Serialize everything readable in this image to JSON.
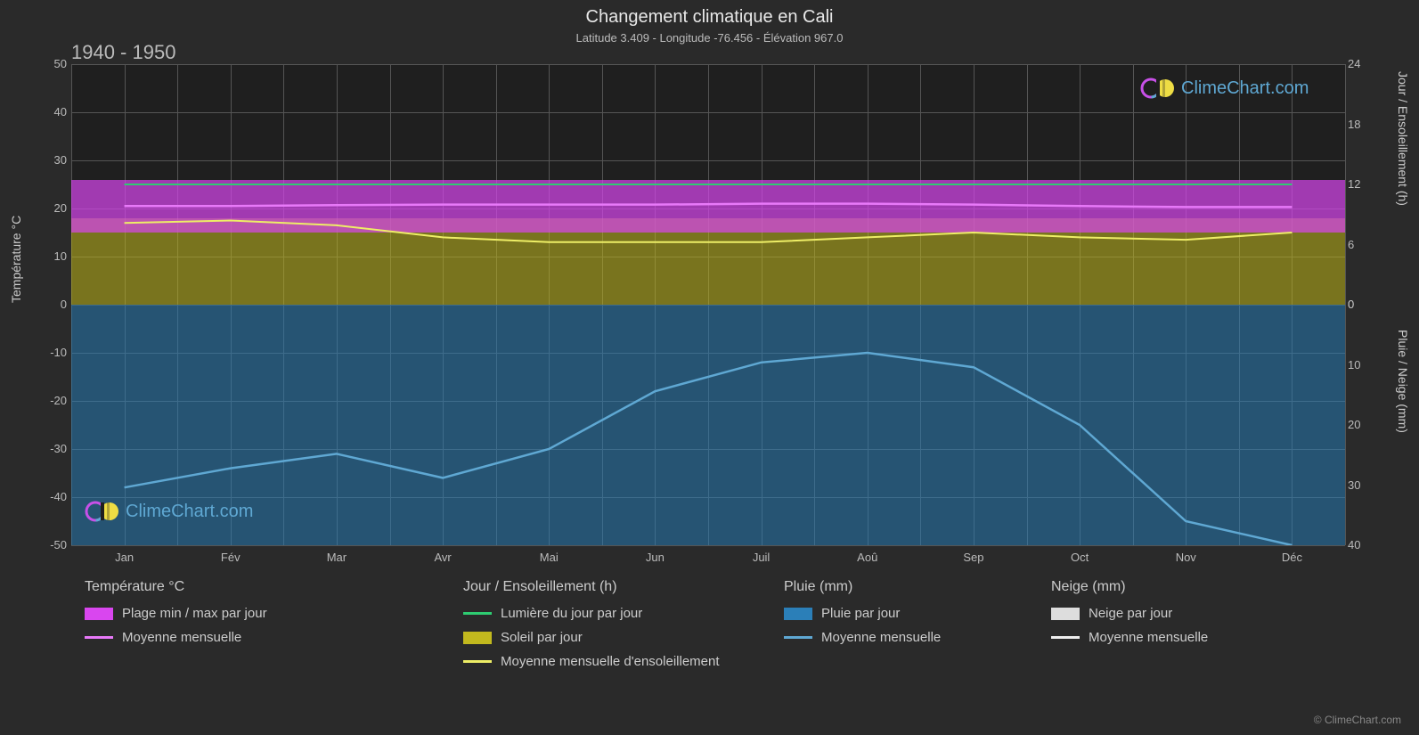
{
  "title": "Changement climatique en Cali",
  "subtitle": "Latitude 3.409 - Longitude -76.456 - Élévation 967.0",
  "period_label": "1940 - 1950",
  "axes": {
    "left_label": "Température °C",
    "right_label_1": "Jour / Ensoleillement (h)",
    "right_label_2": "Pluie / Neige (mm)",
    "left_ticks": [
      50,
      40,
      30,
      20,
      10,
      0,
      -10,
      -20,
      -30,
      -40,
      -50
    ],
    "right_ticks_top": [
      24,
      18,
      12,
      6,
      0
    ],
    "right_ticks_bottom": [
      0,
      10,
      20,
      30,
      40
    ],
    "x_ticks": [
      "Jan",
      "Fév",
      "Mar",
      "Avr",
      "Mai",
      "Jun",
      "Juil",
      "Aoû",
      "Sep",
      "Oct",
      "Nov",
      "Déc"
    ]
  },
  "chart": {
    "background": "#1f1f1f",
    "grid_color": "#555555",
    "temp_ylim": [
      -50,
      50
    ],
    "temp_band": {
      "y_low": 15,
      "y_high": 26,
      "color": "#d946ef",
      "opacity": 0.7
    },
    "sun_band": {
      "y_low": 0,
      "y_high": 18,
      "color": "#c2b91e",
      "opacity": 0.55
    },
    "rain_band": {
      "y_low": -50,
      "y_high": 0,
      "color": "#2b7fb8",
      "opacity": 0.55
    },
    "daylight_line": {
      "color": "#2ecc71",
      "y": 25
    },
    "temp_avg_line": {
      "color": "#e879f9",
      "values": [
        20.5,
        20.5,
        20.7,
        20.8,
        20.8,
        20.8,
        21.0,
        21.0,
        20.8,
        20.5,
        20.3,
        20.3
      ]
    },
    "sun_avg_line": {
      "color": "#eeee66",
      "values": [
        17,
        17.5,
        16.5,
        14,
        13,
        13,
        13,
        14,
        15,
        14,
        13.5,
        15
      ]
    },
    "rain_avg_line": {
      "color": "#5fa8d3",
      "values": [
        -38,
        -34,
        -31,
        -36,
        -30,
        -18,
        -12,
        -10,
        -13,
        -25,
        -45,
        -50
      ]
    }
  },
  "legend": {
    "temp": {
      "title": "Température °C",
      "items": [
        {
          "swatch": "#d946ef",
          "type": "block",
          "label": "Plage min / max par jour"
        },
        {
          "swatch": "#e879f9",
          "type": "line",
          "label": "Moyenne mensuelle"
        }
      ]
    },
    "day": {
      "title": "Jour / Ensoleillement (h)",
      "items": [
        {
          "swatch": "#2ecc71",
          "type": "line",
          "label": "Lumière du jour par jour"
        },
        {
          "swatch": "#c2b91e",
          "type": "block",
          "label": "Soleil par jour"
        },
        {
          "swatch": "#eeee66",
          "type": "line",
          "label": "Moyenne mensuelle d'ensoleillement"
        }
      ]
    },
    "rain": {
      "title": "Pluie (mm)",
      "items": [
        {
          "swatch": "#2b7fb8",
          "type": "block",
          "label": "Pluie par jour"
        },
        {
          "swatch": "#5fa8d3",
          "type": "line",
          "label": "Moyenne mensuelle"
        }
      ]
    },
    "snow": {
      "title": "Neige (mm)",
      "items": [
        {
          "swatch": "#dddddd",
          "type": "block",
          "label": "Neige par jour"
        },
        {
          "swatch": "#eeeeee",
          "type": "line",
          "label": "Moyenne mensuelle"
        }
      ]
    }
  },
  "watermark_text": "ClimeChart.com",
  "copyright": "© ClimeChart.com"
}
